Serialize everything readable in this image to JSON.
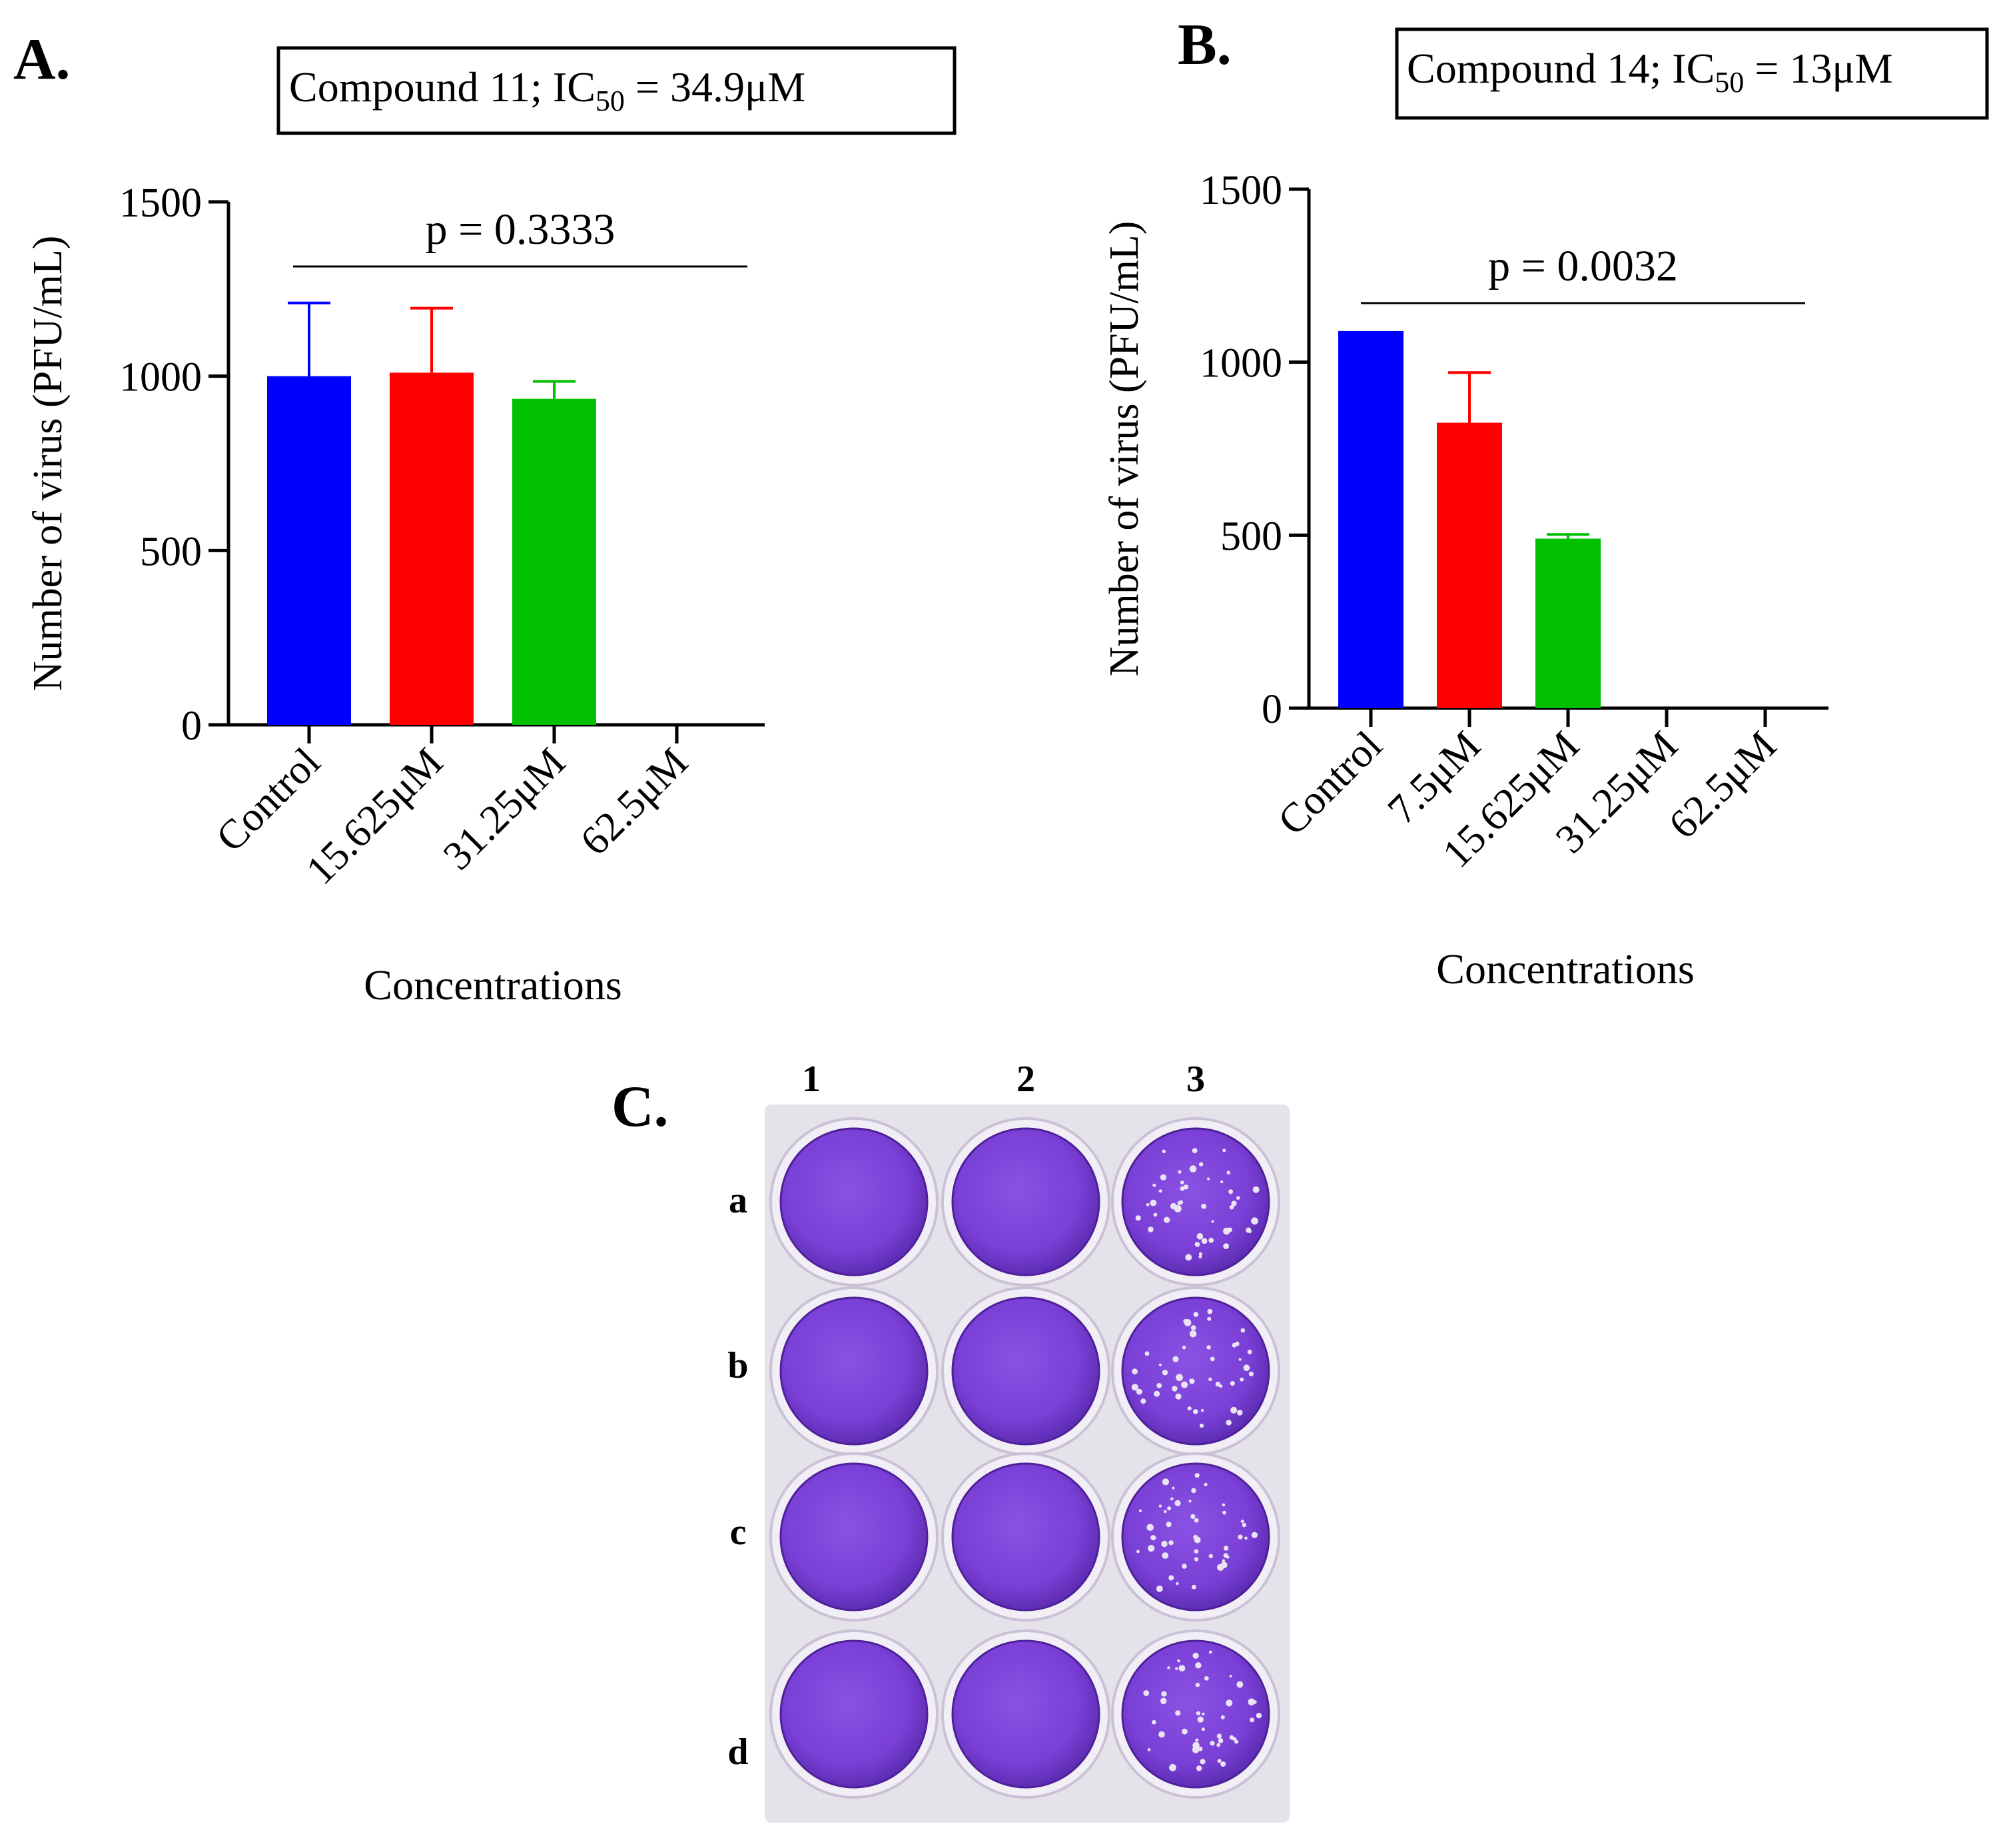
{
  "panel_a": {
    "label": "A.",
    "box_prefix": "Compound 11; IC",
    "box_sub": "50",
    "box_suffix": " = 34.9μM"
  },
  "panel_b": {
    "label": "B.",
    "box_prefix": "Compound 14; IC",
    "box_sub": "50",
    "box_suffix": " = 13μM"
  },
  "panel_c": {
    "label": "C.",
    "column_labels": [
      "1",
      "2",
      "3"
    ],
    "row_labels": [
      "a",
      "b",
      "c",
      "d"
    ],
    "colors": {
      "stain": "#7a3fd6",
      "stain_dark": "#4e2099",
      "plate": "#e6e2ea",
      "plaque": "#e9e3f2"
    }
  },
  "chart_data": [
    {
      "type": "bar",
      "panel": "A",
      "categories": [
        "Control",
        "15.625μM",
        "31.25μM",
        "62.5μM"
      ],
      "values": [
        1000,
        1010,
        935,
        0
      ],
      "error_upper": [
        210,
        185,
        50,
        0
      ],
      "colors": [
        "#0000ff",
        "#ff0000",
        "#00c000",
        "#000000"
      ],
      "xlabel": "Concentrations",
      "ylabel": "Number of virus (PFU/mL)",
      "ylim": [
        0,
        1500
      ],
      "yticks": [
        0,
        500,
        1000,
        1500
      ],
      "annotation": "p = 0.3333"
    },
    {
      "type": "bar",
      "panel": "B",
      "categories": [
        "Control",
        "7.5μM",
        "15.625μM",
        "31.25μM",
        "62.5μM"
      ],
      "values": [
        1090,
        825,
        490,
        0,
        0
      ],
      "error_upper": [
        0,
        145,
        12,
        0,
        0
      ],
      "colors": [
        "#0000ff",
        "#ff0000",
        "#00c000",
        "#000000",
        "#000000"
      ],
      "xlabel": "Concentrations",
      "ylabel": "Number of virus (PFU/mL)",
      "ylim": [
        0,
        1500
      ],
      "yticks": [
        0,
        500,
        1000,
        1500
      ],
      "annotation": "p = 0.0032"
    }
  ]
}
